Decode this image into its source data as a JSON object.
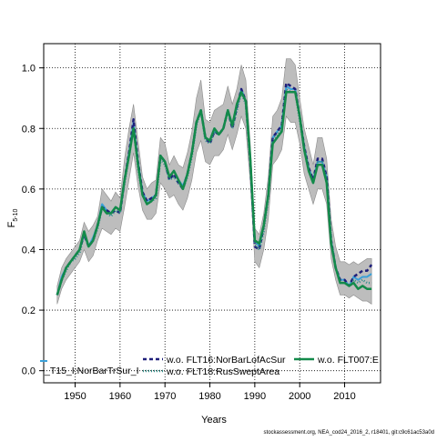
{
  "chart_data": {
    "type": "line",
    "title": "",
    "xlabel": "Years",
    "ylabel_main": "F",
    "ylabel_sub": "5-10",
    "xlim": [
      1943,
      2018
    ],
    "ylim": [
      -0.04,
      1.08
    ],
    "xticks": [
      1950,
      1960,
      1970,
      1980,
      1990,
      2000,
      2010
    ],
    "yticks": [
      0.0,
      0.2,
      0.4,
      0.6,
      0.8,
      1.0
    ],
    "ytick_labels": [
      "0.0",
      "0.2",
      "0.4",
      "0.6",
      "0.8",
      "1.0"
    ],
    "grid": true,
    "legend_position": "bottom",
    "credit": "stockassessment.org, NEA_cod24_2016_2, r18401, git:c9c61ac53a0d",
    "band": {
      "color": "#bdbdbd",
      "x": [
        1946,
        1947,
        1948,
        1949,
        1950,
        1951,
        1952,
        1953,
        1954,
        1955,
        1956,
        1957,
        1958,
        1959,
        1960,
        1961,
        1962,
        1963,
        1964,
        1965,
        1966,
        1967,
        1968,
        1969,
        1970,
        1971,
        1972,
        1973,
        1974,
        1975,
        1976,
        1977,
        1978,
        1979,
        1980,
        1981,
        1982,
        1983,
        1984,
        1985,
        1986,
        1987,
        1988,
        1989,
        1990,
        1991,
        1992,
        1993,
        1994,
        1995,
        1996,
        1997,
        1998,
        1999,
        2000,
        2001,
        2002,
        2003,
        2004,
        2005,
        2006,
        2007,
        2008,
        2009,
        2010,
        2011,
        2012,
        2013,
        2014,
        2015,
        2016
      ],
      "lower": [
        0.22,
        0.27,
        0.3,
        0.32,
        0.34,
        0.36,
        0.4,
        0.36,
        0.38,
        0.43,
        0.47,
        0.46,
        0.45,
        0.47,
        0.46,
        0.54,
        0.63,
        0.72,
        0.61,
        0.53,
        0.5,
        0.5,
        0.52,
        0.62,
        0.6,
        0.57,
        0.58,
        0.55,
        0.53,
        0.57,
        0.63,
        0.72,
        0.76,
        0.69,
        0.68,
        0.71,
        0.71,
        0.73,
        0.78,
        0.73,
        0.78,
        0.84,
        0.8,
        0.62,
        0.36,
        0.34,
        0.4,
        0.5,
        0.68,
        0.7,
        0.73,
        0.84,
        0.82,
        0.82,
        0.75,
        0.65,
        0.6,
        0.55,
        0.6,
        0.6,
        0.55,
        0.37,
        0.3,
        0.25,
        0.25,
        0.24,
        0.25,
        0.24,
        0.23,
        0.23,
        0.22
      ],
      "upper": [
        0.28,
        0.34,
        0.37,
        0.39,
        0.41,
        0.43,
        0.49,
        0.46,
        0.48,
        0.51,
        0.6,
        0.58,
        0.56,
        0.59,
        0.57,
        0.7,
        0.8,
        0.88,
        0.76,
        0.64,
        0.6,
        0.62,
        0.63,
        0.77,
        0.75,
        0.68,
        0.71,
        0.68,
        0.67,
        0.72,
        0.79,
        0.9,
        0.96,
        0.83,
        0.82,
        0.86,
        0.87,
        0.88,
        0.94,
        0.88,
        0.93,
        1.01,
        0.96,
        0.75,
        0.47,
        0.45,
        0.52,
        0.64,
        0.84,
        0.86,
        0.9,
        1.03,
        1.03,
        1.01,
        0.9,
        0.8,
        0.74,
        0.68,
        0.77,
        0.77,
        0.7,
        0.5,
        0.41,
        0.36,
        0.36,
        0.35,
        0.36,
        0.35,
        0.36,
        0.37,
        0.37
      ]
    },
    "x": [
      1946,
      1947,
      1948,
      1949,
      1950,
      1951,
      1952,
      1953,
      1954,
      1955,
      1956,
      1957,
      1958,
      1959,
      1960,
      1961,
      1962,
      1963,
      1964,
      1965,
      1966,
      1967,
      1968,
      1969,
      1970,
      1971,
      1972,
      1973,
      1974,
      1975,
      1976,
      1977,
      1978,
      1979,
      1980,
      1981,
      1982,
      1983,
      1984,
      1985,
      1986,
      1987,
      1988,
      1989,
      1990,
      1991,
      1992,
      1993,
      1994,
      1995,
      1996,
      1997,
      1998,
      1999,
      2000,
      2001,
      2002,
      2003,
      2004,
      2005,
      2006,
      2007,
      2008,
      2009,
      2010,
      2011,
      2012,
      2013,
      2014,
      2015,
      2016
    ],
    "series": [
      {
        "name": "w.o. FLT15_I:NorBarTrSur_I",
        "legend_label": "_T15_I:NorBarTrSur_I",
        "color": "#3aa0d8",
        "dash": "",
        "width": 2,
        "values": [
          0.25,
          0.31,
          0.34,
          0.36,
          0.38,
          0.4,
          0.45,
          0.41,
          0.44,
          0.48,
          0.55,
          0.53,
          0.52,
          0.54,
          0.53,
          0.63,
          0.72,
          0.82,
          0.69,
          0.59,
          0.56,
          0.57,
          0.58,
          0.71,
          0.69,
          0.64,
          0.66,
          0.63,
          0.61,
          0.65,
          0.72,
          0.82,
          0.86,
          0.77,
          0.76,
          0.79,
          0.78,
          0.8,
          0.86,
          0.81,
          0.87,
          0.93,
          0.89,
          0.7,
          0.43,
          0.41,
          0.48,
          0.58,
          0.77,
          0.79,
          0.81,
          0.94,
          0.93,
          0.93,
          0.84,
          0.74,
          0.67,
          0.63,
          0.69,
          0.69,
          0.64,
          0.43,
          0.34,
          0.3,
          0.3,
          0.28,
          0.31,
          0.3,
          0.31,
          0.31,
          0.32
        ]
      },
      {
        "name": "w.o. FLT16:NorBarLofAcSur",
        "legend_label": "w.o. FLT16:NorBarLofAcSur",
        "color": "#1f1f7a",
        "dash": "4,3",
        "width": 2.5,
        "values": [
          0.25,
          0.3,
          0.34,
          0.36,
          0.38,
          0.4,
          0.45,
          0.41,
          0.43,
          0.48,
          0.54,
          0.53,
          0.52,
          0.53,
          0.52,
          0.63,
          0.72,
          0.83,
          0.69,
          0.59,
          0.56,
          0.57,
          0.58,
          0.71,
          0.69,
          0.63,
          0.65,
          0.62,
          0.6,
          0.65,
          0.72,
          0.82,
          0.86,
          0.77,
          0.75,
          0.79,
          0.78,
          0.8,
          0.86,
          0.8,
          0.87,
          0.93,
          0.89,
          0.69,
          0.41,
          0.4,
          0.48,
          0.58,
          0.77,
          0.79,
          0.81,
          0.95,
          0.94,
          0.93,
          0.84,
          0.74,
          0.67,
          0.63,
          0.7,
          0.7,
          0.64,
          0.43,
          0.34,
          0.3,
          0.3,
          0.28,
          0.31,
          0.32,
          0.33,
          0.33,
          0.35
        ]
      },
      {
        "name": "w.o. FLT18:RusSweptArea",
        "legend_label": "w.o. FLT18:RusSweptArea",
        "color": "#2f8f8a",
        "dash": "1,2",
        "width": 2.5,
        "values": [
          0.25,
          0.3,
          0.33,
          0.36,
          0.37,
          0.39,
          0.45,
          0.41,
          0.43,
          0.47,
          0.54,
          0.52,
          0.51,
          0.53,
          0.52,
          0.62,
          0.71,
          0.8,
          0.67,
          0.58,
          0.55,
          0.56,
          0.57,
          0.7,
          0.68,
          0.63,
          0.64,
          0.62,
          0.6,
          0.64,
          0.71,
          0.81,
          0.86,
          0.76,
          0.75,
          0.79,
          0.78,
          0.8,
          0.86,
          0.8,
          0.86,
          0.92,
          0.88,
          0.69,
          0.42,
          0.4,
          0.46,
          0.57,
          0.76,
          0.78,
          0.8,
          0.93,
          0.92,
          0.92,
          0.83,
          0.73,
          0.66,
          0.62,
          0.69,
          0.69,
          0.63,
          0.43,
          0.34,
          0.29,
          0.29,
          0.28,
          0.3,
          0.29,
          0.3,
          0.29,
          0.29
        ]
      },
      {
        "name": "w.o. FLT007:E",
        "legend_label": "w.o. FLT007:E",
        "color": "#138a4a",
        "dash": "",
        "width": 2.5,
        "values": [
          0.25,
          0.3,
          0.34,
          0.36,
          0.38,
          0.4,
          0.46,
          0.41,
          0.43,
          0.48,
          0.54,
          0.52,
          0.52,
          0.54,
          0.53,
          0.63,
          0.71,
          0.8,
          0.68,
          0.58,
          0.55,
          0.56,
          0.58,
          0.71,
          0.69,
          0.64,
          0.66,
          0.63,
          0.6,
          0.65,
          0.72,
          0.82,
          0.86,
          0.77,
          0.76,
          0.8,
          0.78,
          0.8,
          0.86,
          0.81,
          0.88,
          0.92,
          0.89,
          0.7,
          0.43,
          0.42,
          0.48,
          0.58,
          0.75,
          0.77,
          0.79,
          0.92,
          0.92,
          0.92,
          0.84,
          0.73,
          0.66,
          0.62,
          0.68,
          0.68,
          0.62,
          0.42,
          0.34,
          0.29,
          0.29,
          0.28,
          0.29,
          0.27,
          0.28,
          0.27,
          0.27
        ]
      }
    ]
  }
}
